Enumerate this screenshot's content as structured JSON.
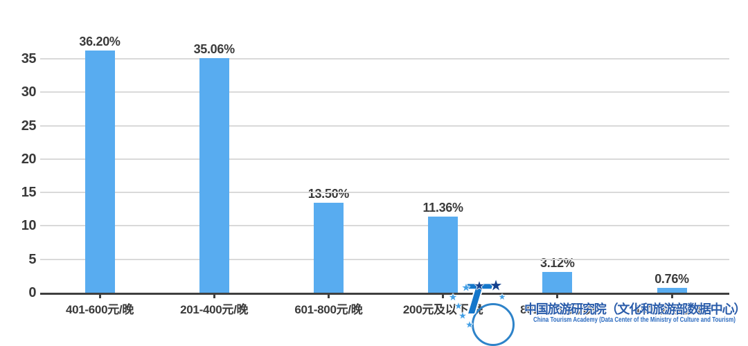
{
  "chart_data": {
    "type": "bar",
    "title": "",
    "xlabel": "",
    "ylabel": "",
    "categories": [
      "401-600元/晚",
      "201-400元/晚",
      "601-800元/晚",
      "200元及以下/晚",
      "801-1000元/晚",
      "1000元以上/晚"
    ],
    "values": [
      36.2,
      35.06,
      13.5,
      11.36,
      3.12,
      0.76
    ],
    "value_labels": [
      "36.20%",
      "35.06%",
      "13.50%",
      "11.36%",
      "3.12%",
      "0.76%"
    ],
    "yticks": [
      0,
      5,
      10,
      15,
      20,
      25,
      30,
      35
    ],
    "ytick_labels": [
      "0",
      "5",
      "10",
      "15",
      "20",
      "25",
      "30",
      "35"
    ],
    "ylim": [
      0,
      37
    ],
    "grid": true,
    "legend": "none",
    "colors": {
      "bar": "#58acf0",
      "grid": "#d9d9d9",
      "axis": "#3f3f3f",
      "text": "#3a3a3a"
    }
  },
  "watermark": {
    "cn": "中国旅游研究院（文化和旅游部数据中心）",
    "en": "China Tourism Academy (Data Center of the Ministry of Culture and Tourism)",
    "logo_letter": "T",
    "colors": {
      "cn_text": "#2a5caa",
      "en_text": "#2b6bc0",
      "star_navy": "#14418e",
      "star_light": "#43a0e6",
      "ring": "#2e83c9",
      "t_letter": "#1476ca"
    }
  }
}
